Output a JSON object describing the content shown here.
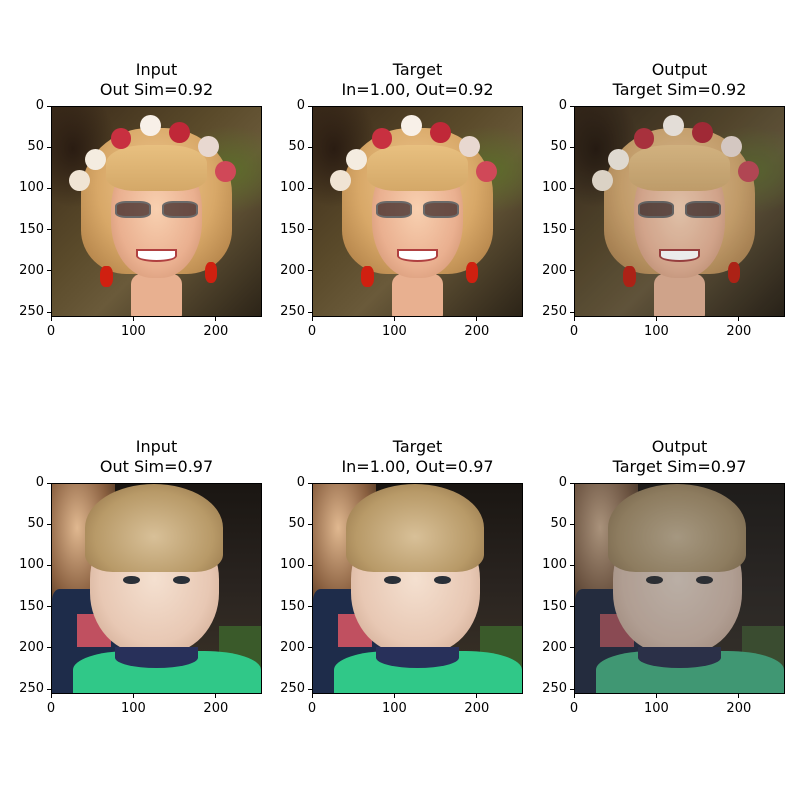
{
  "figure": {
    "rows": [
      {
        "panels": [
          {
            "title_line1": "Input",
            "title_line2": "Out Sim=0.92",
            "image": "woman-with-flower-crown-photo",
            "variant": "sharp"
          },
          {
            "title_line1": "Target",
            "title_line2": "In=1.00, Out=0.92",
            "image": "woman-with-flower-crown-photo",
            "variant": "sharp"
          },
          {
            "title_line1": "Output",
            "title_line2": "Target Sim=0.92",
            "image": "woman-with-flower-crown-photo",
            "variant": "soft"
          }
        ]
      },
      {
        "panels": [
          {
            "title_line1": "Input",
            "title_line2": "Out Sim=0.97",
            "image": "young-boy-photo",
            "variant": "sharp"
          },
          {
            "title_line1": "Target",
            "title_line2": "In=1.00, Out=0.97",
            "image": "young-boy-photo",
            "variant": "sharp"
          },
          {
            "title_line1": "Output",
            "title_line2": "Target Sim=0.97",
            "image": "young-boy-photo",
            "variant": "dark"
          }
        ]
      }
    ],
    "axes": {
      "x_ticks": [
        "0",
        "100",
        "200"
      ],
      "y_ticks": [
        "0",
        "50",
        "100",
        "150",
        "200",
        "250"
      ],
      "x_tick_values": [
        0,
        100,
        200
      ],
      "y_tick_values": [
        0,
        50,
        100,
        150,
        200,
        250
      ],
      "extent": [
        0,
        256
      ]
    }
  }
}
